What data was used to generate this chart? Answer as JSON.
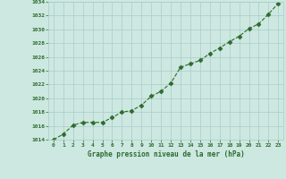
{
  "x": [
    0,
    1,
    2,
    3,
    4,
    5,
    6,
    7,
    8,
    9,
    10,
    11,
    12,
    13,
    14,
    15,
    16,
    17,
    18,
    19,
    20,
    21,
    22,
    23
  ],
  "y": [
    1014.0,
    1014.8,
    1016.1,
    1016.5,
    1016.5,
    1016.5,
    1017.2,
    1018.0,
    1018.2,
    1019.0,
    1020.3,
    1021.0,
    1022.2,
    1024.5,
    1025.0,
    1025.5,
    1026.5,
    1027.3,
    1028.2,
    1029.0,
    1030.1,
    1030.8,
    1032.2,
    1033.8
  ],
  "line_color": "#2d6a2d",
  "marker": "D",
  "marker_size": 2.5,
  "bg_color": "#cce8e0",
  "grid_color": "#aacccc",
  "xlabel": "Graphe pression niveau de la mer (hPa)",
  "xlabel_color": "#2d6a2d",
  "tick_color": "#2d6a2d",
  "ylim": [
    1014,
    1034
  ],
  "xlim": [
    -0.5,
    23.5
  ],
  "yticks": [
    1014,
    1016,
    1018,
    1020,
    1022,
    1024,
    1026,
    1028,
    1030,
    1032,
    1034
  ],
  "xticks": [
    0,
    1,
    2,
    3,
    4,
    5,
    6,
    7,
    8,
    9,
    10,
    11,
    12,
    13,
    14,
    15,
    16,
    17,
    18,
    19,
    20,
    21,
    22,
    23
  ]
}
